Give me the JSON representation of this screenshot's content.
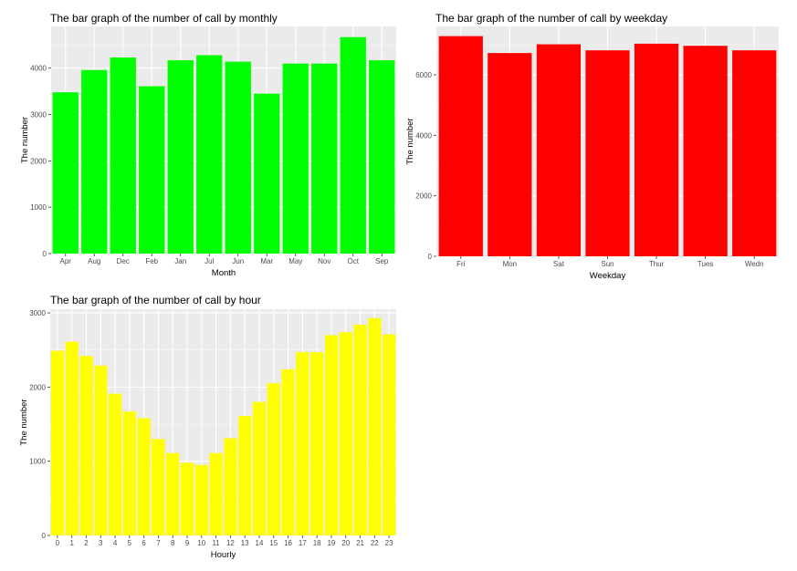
{
  "chart_data": [
    {
      "type": "bar",
      "title": "The bar graph of the number of call by monthly",
      "xlabel": "Month",
      "ylabel": "The number",
      "categories": [
        "Apr",
        "Aug",
        "Dec",
        "Feb",
        "Jan",
        "Jul",
        "Jun",
        "Mar",
        "May",
        "Nov",
        "Oct",
        "Sep"
      ],
      "values": [
        3480,
        3960,
        4230,
        3610,
        4170,
        4280,
        4140,
        3450,
        4100,
        4100,
        4670,
        4170
      ],
      "ylim": [
        0,
        4900
      ],
      "yticks": [
        0,
        1000,
        2000,
        3000,
        4000
      ],
      "color": "#00FF00",
      "grid": true
    },
    {
      "type": "bar",
      "title": "The bar graph of the number of call by weekday",
      "xlabel": "Weekday",
      "ylabel": "The number",
      "categories": [
        "Fri",
        "Mon",
        "Sat",
        "Sun",
        "Thur",
        "Tues",
        "Wedn"
      ],
      "values": [
        7280,
        6720,
        7010,
        6810,
        7030,
        6960,
        6810
      ],
      "ylim": [
        0,
        7600
      ],
      "yticks": [
        0,
        2000,
        4000,
        6000
      ],
      "color": "#FF0000",
      "grid": true
    },
    {
      "type": "bar",
      "title": "The bar graph of the number of call by hour",
      "xlabel": "Hourly",
      "ylabel": "The number",
      "categories": [
        "0",
        "1",
        "2",
        "3",
        "4",
        "5",
        "6",
        "7",
        "8",
        "9",
        "10",
        "11",
        "12",
        "13",
        "14",
        "15",
        "16",
        "17",
        "18",
        "19",
        "20",
        "21",
        "22",
        "23"
      ],
      "values": [
        2490,
        2610,
        2420,
        2290,
        1910,
        1670,
        1580,
        1300,
        1110,
        980,
        950,
        1110,
        1310,
        1610,
        1800,
        2050,
        2240,
        2470,
        2470,
        2700,
        2740,
        2840,
        2930,
        2710
      ],
      "ylim": [
        0,
        3050
      ],
      "yticks": [
        0,
        1000,
        2000,
        3000
      ],
      "color": "#FFFF00",
      "grid": true
    }
  ]
}
